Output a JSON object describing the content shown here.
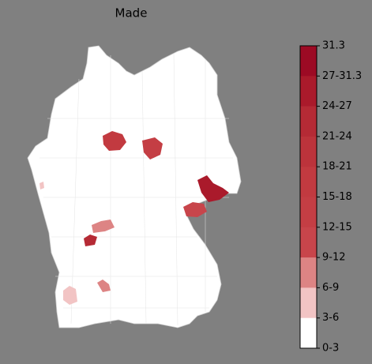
{
  "title": "Made",
  "colorbar": {
    "labels": [
      "31.3",
      "27-31.3",
      "24-27",
      "21-24",
      "18-21",
      "15-18",
      "12-15",
      "9-12",
      "6-9",
      "3-6",
      "0-3"
    ],
    "colors": [
      "#9c0a24",
      "#aa1a2b",
      "#b52a35",
      "#bc333b",
      "#c23a40",
      "#c43e44",
      "#c8454b",
      "#dd8484",
      "#f2c4c4",
      "#ffffff"
    ]
  }
}
